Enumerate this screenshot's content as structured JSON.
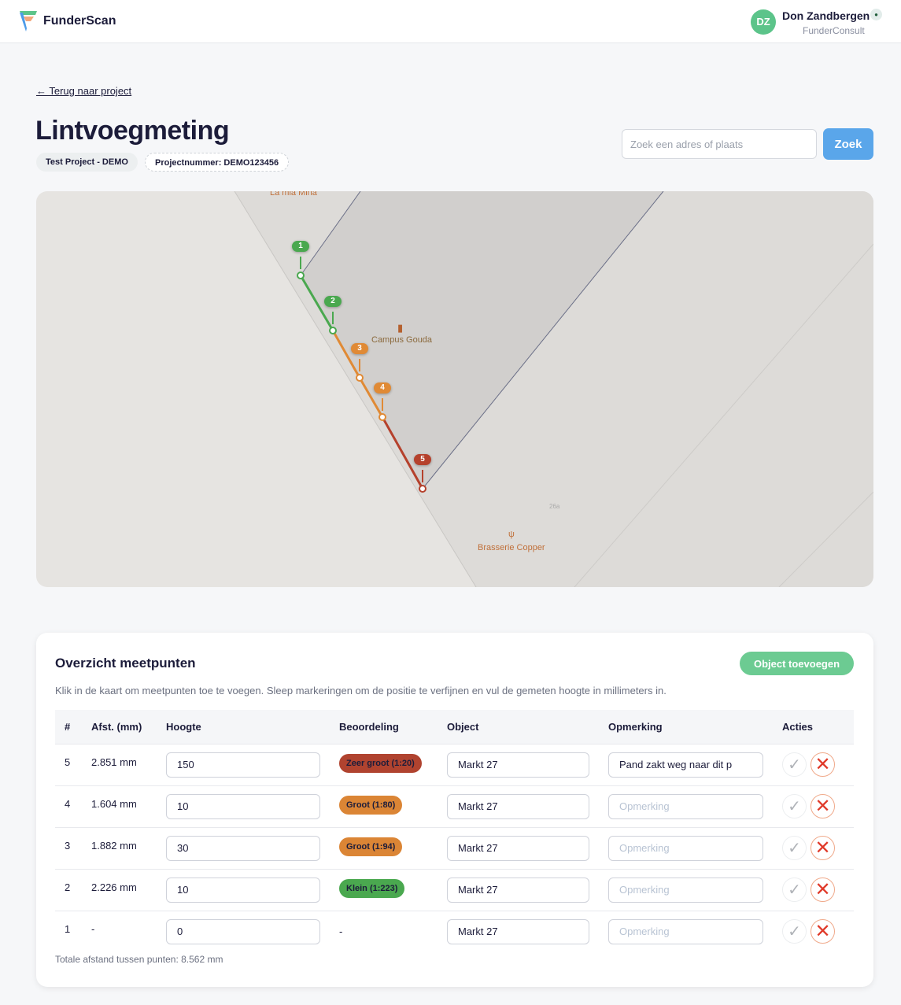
{
  "header": {
    "brand": "FunderScan",
    "user_initials": "DZ",
    "user_name": "Don Zandbergen",
    "user_org": "FunderConsult"
  },
  "page": {
    "back_link": "← Terug naar project",
    "title": "Lintvoegmeting",
    "project_chip": "Test Project - DEMO",
    "project_number": "Projectnummer: DEMO123456"
  },
  "search": {
    "placeholder": "Zoek een adres of plaats",
    "value": "",
    "button": "Zoek"
  },
  "map": {
    "pois": [
      "La mia Mina",
      "Campus Gouda",
      "Brasserie Copper",
      "26a"
    ],
    "markers": [
      {
        "label": "1",
        "color": "#4aa84f"
      },
      {
        "label": "2",
        "color": "#4aa84f"
      },
      {
        "label": "3",
        "color": "#e08a35"
      },
      {
        "label": "4",
        "color": "#e08a35"
      },
      {
        "label": "5",
        "color": "#b5412c"
      }
    ]
  },
  "overview": {
    "title": "Overzicht meetpunten",
    "add_button": "Object toevoegen",
    "description": "Klik in de kaart om meetpunten toe te voegen. Sleep markeringen om de positie te verfijnen en vul de gemeten hoogte in millimeters in.",
    "columns": [
      "#",
      "Afst. (mm)",
      "Hoogte",
      "Beoordeling",
      "Object",
      "Opmerking",
      "Acties"
    ],
    "remark_placeholder": "Opmerking",
    "rows": [
      {
        "n": "5",
        "dist": "2.851 mm",
        "height": "150",
        "rating": "Zeer groot (1:20)",
        "rating_color": "#b0432f",
        "object": "Markt 27",
        "remark": "Pand zakt weg naar dit p"
      },
      {
        "n": "4",
        "dist": "1.604 mm",
        "height": "10",
        "rating": "Groot (1:80)",
        "rating_color": "#db8535",
        "object": "Markt 27",
        "remark": ""
      },
      {
        "n": "3",
        "dist": "1.882 mm",
        "height": "30",
        "rating": "Groot (1:94)",
        "rating_color": "#db8535",
        "object": "Markt 27",
        "remark": ""
      },
      {
        "n": "2",
        "dist": "2.226 mm",
        "height": "10",
        "rating": "Klein (1:223)",
        "rating_color": "#4aa84f",
        "object": "Markt 27",
        "remark": ""
      },
      {
        "n": "1",
        "dist": "-",
        "height": "0",
        "rating": "-",
        "rating_color": "",
        "object": "Markt 27",
        "remark": ""
      }
    ],
    "total": "Totale afstand tussen punten: 8.562 mm"
  }
}
